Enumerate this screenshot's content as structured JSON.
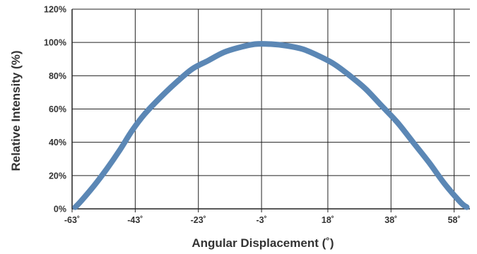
{
  "chart_data": {
    "type": "line",
    "title": "",
    "xlabel": "Angular Displacement (˚)",
    "ylabel": "Relative Intensity (%)",
    "x_ticks": [
      "-63˚",
      "-43˚",
      "-23˚",
      "-3˚",
      "18˚",
      "38˚",
      "58˚"
    ],
    "x_tick_values": [
      -63,
      -43,
      -23,
      -3,
      18,
      38,
      58
    ],
    "y_ticks": [
      "0%",
      "20%",
      "40%",
      "60%",
      "80%",
      "100%",
      "120%"
    ],
    "y_tick_values": [
      0,
      20,
      40,
      60,
      80,
      100,
      120
    ],
    "xlim": [
      -63,
      63
    ],
    "ylim": [
      0,
      120
    ],
    "grid": true,
    "legend": "none",
    "series": [
      {
        "color": "#5b87b5",
        "x": [
          -62,
          -60,
          -56,
          -52,
          -48,
          -44,
          -40,
          -35,
          -30,
          -25,
          -20,
          -15,
          -10,
          -5,
          0,
          5,
          10,
          15,
          20,
          25,
          30,
          35,
          40,
          45,
          50,
          55,
          60,
          62
        ],
        "y": [
          1,
          5,
          14,
          24,
          35,
          47,
          57,
          67,
          76,
          84,
          89,
          94,
          97,
          99,
          99,
          98,
          96,
          92,
          87,
          80,
          72,
          62,
          52,
          40,
          28,
          15,
          4,
          1
        ]
      }
    ]
  }
}
